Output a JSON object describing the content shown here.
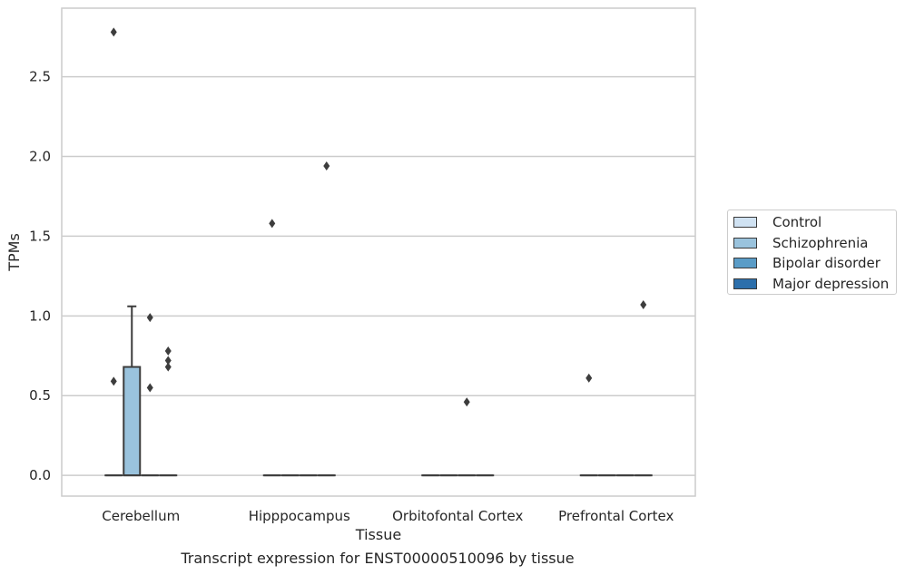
{
  "chart_data": {
    "type": "box",
    "xlabel": "Tissue",
    "ylabel": "TPMs",
    "caption": "Transcript expression for ENST00000510096 by tissue",
    "categories": [
      "Cerebellum",
      "Hipppocampus",
      "Orbitofontal Cortex",
      "Prefrontal Cortex"
    ],
    "ylim": [
      -0.13,
      2.93
    ],
    "yticks": [
      0.0,
      0.5,
      1.0,
      1.5,
      2.0,
      2.5
    ],
    "grid": true,
    "legend_position": "center-right",
    "series": [
      {
        "name": "Control",
        "color": "#d0e2f2",
        "boxes": [
          {
            "q1": 0,
            "median": 0,
            "q3": 0,
            "whisker_low": 0,
            "whisker_high": 0,
            "outliers": [
              0.59,
              2.78
            ]
          },
          {
            "q1": 0,
            "median": 0,
            "q3": 0,
            "whisker_low": 0,
            "whisker_high": 0,
            "outliers": [
              1.58
            ]
          },
          {
            "q1": 0,
            "median": 0,
            "q3": 0,
            "whisker_low": 0,
            "whisker_high": 0,
            "outliers": []
          },
          {
            "q1": 0,
            "median": 0,
            "q3": 0,
            "whisker_low": 0,
            "whisker_high": 0,
            "outliers": [
              0.61
            ]
          }
        ]
      },
      {
        "name": "Schizophrenia",
        "color": "#9ac3dd",
        "boxes": [
          {
            "q1": 0,
            "median": 0,
            "q3": 0.68,
            "whisker_low": 0,
            "whisker_high": 1.06,
            "outliers": []
          },
          {
            "q1": 0,
            "median": 0,
            "q3": 0,
            "whisker_low": 0,
            "whisker_high": 0,
            "outliers": []
          },
          {
            "q1": 0,
            "median": 0,
            "q3": 0,
            "whisker_low": 0,
            "whisker_high": 0,
            "outliers": []
          },
          {
            "q1": 0,
            "median": 0,
            "q3": 0,
            "whisker_low": 0,
            "whisker_high": 0,
            "outliers": []
          }
        ]
      },
      {
        "name": "Bipolar disorder",
        "color": "#5a9cc7",
        "boxes": [
          {
            "q1": 0,
            "median": 0,
            "q3": 0,
            "whisker_low": 0,
            "whisker_high": 0,
            "outliers": [
              0.55,
              0.99
            ]
          },
          {
            "q1": 0,
            "median": 0,
            "q3": 0,
            "whisker_low": 0,
            "whisker_high": 0,
            "outliers": []
          },
          {
            "q1": 0,
            "median": 0,
            "q3": 0,
            "whisker_low": 0,
            "whisker_high": 0,
            "outliers": [
              0.46
            ]
          },
          {
            "q1": 0,
            "median": 0,
            "q3": 0,
            "whisker_low": 0,
            "whisker_high": 0,
            "outliers": []
          }
        ]
      },
      {
        "name": "Major depression",
        "color": "#2c6fab",
        "boxes": [
          {
            "q1": 0,
            "median": 0,
            "q3": 0,
            "whisker_low": 0,
            "whisker_high": 0,
            "outliers": [
              0.68,
              0.72,
              0.78
            ]
          },
          {
            "q1": 0,
            "median": 0,
            "q3": 0,
            "whisker_low": 0,
            "whisker_high": 0,
            "outliers": [
              1.94
            ]
          },
          {
            "q1": 0,
            "median": 0,
            "q3": 0,
            "whisker_low": 0,
            "whisker_high": 0,
            "outliers": []
          },
          {
            "q1": 0,
            "median": 0,
            "q3": 0,
            "whisker_low": 0,
            "whisker_high": 0,
            "outliers": [
              1.07
            ]
          }
        ]
      }
    ]
  }
}
